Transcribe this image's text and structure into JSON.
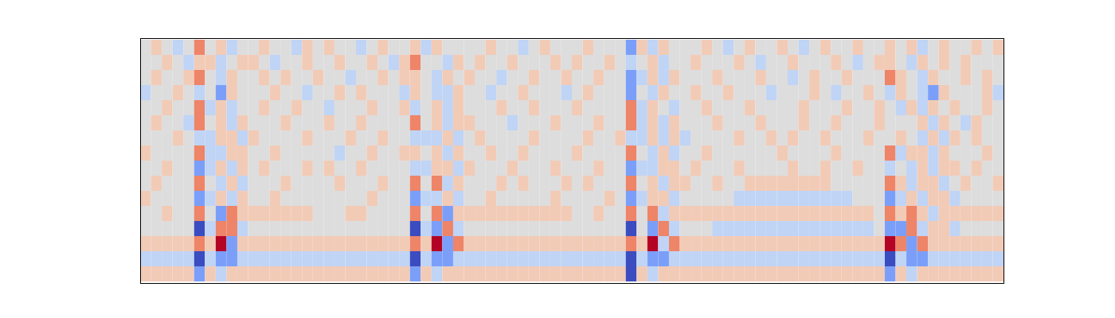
{
  "chart_data": {
    "type": "heatmap",
    "tick_labels": false,
    "clim": [
      -3,
      3
    ],
    "cells": [
      [
        0,
        1,
        0,
        -1,
        0,
        2,
        0,
        1,
        -1,
        0,
        0,
        1,
        0,
        0,
        -1,
        1,
        0,
        1,
        0,
        0,
        -1,
        0,
        1,
        0,
        0,
        1,
        -1,
        1,
        0,
        0,
        0,
        0,
        1,
        0,
        0,
        -1,
        0,
        1,
        0,
        0,
        0,
        1,
        0,
        0,
        0,
        -2,
        1,
        -1,
        1,
        0,
        0,
        0,
        1,
        0,
        -1,
        0,
        1,
        0,
        0,
        1,
        0,
        -1,
        0,
        1,
        0,
        0,
        1,
        0,
        0,
        1,
        0,
        1,
        -1,
        0,
        1,
        0,
        0,
        1,
        0,
        1
      ],
      [
        0,
        0,
        1,
        0,
        -1,
        1,
        1,
        -1,
        0,
        1,
        1,
        0,
        -1,
        0,
        0,
        1,
        0,
        0,
        1,
        0,
        0,
        1,
        0,
        -1,
        1,
        2,
        0,
        0,
        -1,
        1,
        0,
        1,
        0,
        0,
        1,
        0,
        0,
        0,
        1,
        0,
        1,
        0,
        0,
        1,
        0,
        -1,
        0,
        1,
        -1,
        0,
        0,
        1,
        0,
        0,
        0,
        1,
        0,
        -1,
        0,
        0,
        1,
        0,
        0,
        0,
        1,
        0,
        -1,
        0,
        1,
        1,
        0,
        -1,
        1,
        0,
        1,
        0,
        1,
        0,
        0,
        0
      ],
      [
        0,
        1,
        0,
        0,
        1,
        2,
        0,
        -1,
        1,
        0,
        0,
        1,
        0,
        1,
        0,
        0,
        1,
        0,
        0,
        -1,
        0,
        0,
        1,
        0,
        1,
        1,
        0,
        -1,
        1,
        0,
        1,
        0,
        0,
        -1,
        0,
        0,
        1,
        0,
        0,
        1,
        0,
        0,
        1,
        0,
        0,
        -2,
        -1,
        1,
        -1,
        1,
        0,
        0,
        0,
        1,
        0,
        0,
        0,
        1,
        0,
        0,
        -1,
        0,
        1,
        0,
        0,
        1,
        0,
        0,
        0,
        2,
        1,
        0,
        -1,
        1,
        0,
        0,
        1,
        0,
        1,
        0
      ],
      [
        -1,
        0,
        0,
        1,
        0,
        -1,
        0,
        -2,
        1,
        0,
        0,
        0,
        1,
        0,
        0,
        -1,
        0,
        0,
        1,
        0,
        1,
        0,
        0,
        0,
        -1,
        1,
        0,
        -1,
        -1,
        1,
        0,
        0,
        -1,
        0,
        0,
        1,
        0,
        0,
        0,
        -1,
        0,
        1,
        0,
        0,
        0,
        -2,
        0,
        -1,
        1,
        0,
        0,
        1,
        0,
        0,
        1,
        0,
        0,
        0,
        -1,
        0,
        0,
        0,
        1,
        0,
        -1,
        0,
        0,
        1,
        0,
        -1,
        1,
        0,
        -1,
        -2,
        1,
        0,
        0,
        0,
        1,
        -1
      ],
      [
        0,
        0,
        1,
        0,
        0,
        2,
        -1,
        1,
        -1,
        0,
        0,
        1,
        0,
        0,
        1,
        0,
        0,
        -1,
        0,
        0,
        0,
        1,
        0,
        0,
        1,
        -1,
        0,
        1,
        -1,
        1,
        0,
        0,
        0,
        1,
        0,
        0,
        1,
        0,
        0,
        0,
        1,
        0,
        0,
        0,
        0,
        2,
        -1,
        1,
        0,
        -1,
        0,
        0,
        1,
        0,
        0,
        0,
        1,
        0,
        0,
        0,
        0,
        1,
        0,
        0,
        0,
        1,
        0,
        0,
        1,
        0,
        -1,
        1,
        -1,
        1,
        0,
        1,
        0,
        0,
        1,
        0
      ],
      [
        0,
        1,
        0,
        0,
        -1,
        2,
        0,
        1,
        -1,
        1,
        0,
        0,
        0,
        1,
        0,
        0,
        0,
        1,
        0,
        0,
        1,
        0,
        0,
        0,
        0,
        2,
        0,
        1,
        -1,
        1,
        1,
        0,
        0,
        0,
        -1,
        0,
        0,
        0,
        1,
        0,
        0,
        0,
        1,
        0,
        0,
        2,
        -1,
        1,
        -1,
        1,
        0,
        0,
        0,
        1,
        0,
        0,
        0,
        1,
        0,
        0,
        0,
        1,
        0,
        0,
        1,
        0,
        0,
        0,
        1,
        0,
        0,
        0,
        1,
        -1,
        1,
        0,
        -1,
        1,
        0,
        0
      ],
      [
        0,
        0,
        0,
        1,
        0,
        -1,
        -1,
        1,
        1,
        -1,
        1,
        0,
        0,
        0,
        0,
        1,
        0,
        0,
        0,
        1,
        0,
        0,
        1,
        0,
        0,
        -1,
        -1,
        -1,
        1,
        -1,
        0,
        1,
        0,
        0,
        0,
        0,
        1,
        0,
        0,
        0,
        0,
        1,
        0,
        0,
        1,
        -1,
        -1,
        1,
        -1,
        1,
        -1,
        0,
        0,
        0,
        0,
        1,
        0,
        0,
        1,
        0,
        1,
        0,
        0,
        1,
        0,
        0,
        0,
        1,
        0,
        0,
        1,
        0,
        -1,
        1,
        -1,
        1,
        0,
        1,
        0,
        0
      ],
      [
        1,
        0,
        0,
        0,
        0,
        2,
        -1,
        -1,
        1,
        1,
        0,
        0,
        1,
        0,
        0,
        0,
        0,
        0,
        -1,
        0,
        0,
        1,
        0,
        0,
        1,
        1,
        0,
        1,
        -1,
        1,
        0,
        0,
        1,
        0,
        0,
        1,
        0,
        0,
        0,
        0,
        1,
        0,
        0,
        0,
        0,
        2,
        0,
        -1,
        1,
        -1,
        0,
        0,
        1,
        0,
        0,
        0,
        0,
        0,
        0,
        1,
        0,
        0,
        0,
        0,
        1,
        0,
        0,
        0,
        0,
        2,
        -1,
        1,
        1,
        -1,
        1,
        0,
        0,
        0,
        1,
        0
      ],
      [
        0,
        0,
        1,
        0,
        0,
        -2,
        -1,
        1,
        -1,
        1,
        0,
        1,
        0,
        0,
        0,
        1,
        0,
        1,
        0,
        0,
        1,
        0,
        0,
        0,
        0,
        -1,
        -1,
        1,
        1,
        -1,
        1,
        0,
        0,
        0,
        1,
        0,
        0,
        0,
        1,
        0,
        0,
        0,
        1,
        0,
        0,
        -2,
        -1,
        -1,
        1,
        1,
        0,
        1,
        0,
        0,
        0,
        1,
        0,
        0,
        0,
        0,
        1,
        0,
        0,
        1,
        0,
        0,
        1,
        0,
        0,
        -1,
        0,
        -1,
        1,
        -1,
        1,
        1,
        0,
        1,
        0,
        0
      ],
      [
        0,
        1,
        0,
        0,
        0,
        2,
        0,
        -1,
        1,
        -1,
        0,
        0,
        0,
        1,
        0,
        0,
        0,
        0,
        1,
        0,
        0,
        0,
        1,
        0,
        0,
        2,
        0,
        2,
        -1,
        1,
        0,
        0,
        0,
        1,
        0,
        1,
        0,
        0,
        0,
        1,
        0,
        1,
        0,
        0,
        0,
        2,
        0,
        1,
        -1,
        1,
        1,
        0,
        0,
        1,
        0,
        0,
        1,
        1,
        1,
        1,
        1,
        1,
        1,
        1,
        0,
        0,
        0,
        0,
        0,
        2,
        1,
        -1,
        1,
        1,
        -1,
        0,
        1,
        0,
        0,
        1
      ],
      [
        1,
        0,
        0,
        0,
        0,
        -2,
        -1,
        1,
        -1,
        1,
        0,
        0,
        1,
        0,
        0,
        0,
        0,
        0,
        0,
        0,
        0,
        1,
        0,
        0,
        0,
        -2,
        -1,
        -1,
        1,
        -1,
        0,
        0,
        1,
        0,
        0,
        0,
        0,
        0,
        1,
        0,
        0,
        0,
        0,
        1,
        0,
        -2,
        -1,
        1,
        1,
        -1,
        0,
        0,
        0,
        0,
        0,
        -1,
        -1,
        -1,
        -1,
        -1,
        -1,
        -1,
        -1,
        -1,
        -1,
        -1,
        0,
        0,
        0,
        -2,
        -1,
        1,
        -1,
        1,
        1,
        -1,
        0,
        0,
        0,
        0
      ],
      [
        0,
        0,
        1,
        0,
        0,
        2,
        0,
        -2,
        2,
        1,
        1,
        1,
        1,
        1,
        1,
        1,
        0,
        0,
        0,
        1,
        1,
        0,
        0,
        0,
        0,
        2,
        0,
        2,
        -2,
        1,
        1,
        1,
        1,
        1,
        1,
        1,
        1,
        1,
        1,
        1,
        0,
        0,
        1,
        0,
        0,
        2,
        0,
        2,
        -1,
        1,
        1,
        1,
        1,
        1,
        1,
        1,
        1,
        1,
        1,
        1,
        1,
        1,
        1,
        1,
        1,
        1,
        1,
        1,
        0,
        2,
        1,
        2,
        1,
        -1,
        1,
        1,
        1,
        1,
        1,
        1
      ],
      [
        0,
        0,
        0,
        0,
        0,
        -3,
        -1,
        2,
        2,
        -1,
        0,
        0,
        0,
        0,
        0,
        0,
        0,
        0,
        0,
        0,
        0,
        0,
        0,
        0,
        0,
        -3,
        -1,
        -2,
        2,
        -1,
        0,
        0,
        0,
        0,
        0,
        0,
        0,
        0,
        0,
        0,
        0,
        0,
        0,
        0,
        0,
        -3,
        0,
        -2,
        2,
        -1,
        0,
        0,
        0,
        -1,
        -1,
        -1,
        -1,
        -1,
        -1,
        -1,
        -1,
        -1,
        -1,
        -1,
        -1,
        -1,
        -1,
        -1,
        0,
        -2,
        -2,
        2,
        -1,
        1,
        1,
        -1,
        0,
        0,
        0,
        0
      ],
      [
        1,
        1,
        1,
        1,
        1,
        2,
        1,
        3,
        -2,
        1,
        1,
        1,
        1,
        1,
        1,
        1,
        1,
        1,
        1,
        1,
        1,
        1,
        1,
        1,
        1,
        2,
        1,
        3,
        -2,
        2,
        1,
        1,
        1,
        1,
        1,
        1,
        1,
        1,
        1,
        1,
        1,
        1,
        1,
        1,
        1,
        2,
        1,
        3,
        -1,
        2,
        1,
        1,
        1,
        1,
        1,
        1,
        1,
        1,
        1,
        1,
        1,
        1,
        1,
        1,
        1,
        1,
        1,
        1,
        1,
        3,
        2,
        -2,
        2,
        1,
        1,
        1,
        1,
        1,
        1,
        1
      ],
      [
        -1,
        -1,
        -1,
        -1,
        -1,
        -3,
        -1,
        -2,
        -2,
        -1,
        -1,
        -1,
        -1,
        -1,
        -1,
        -1,
        -1,
        -1,
        -1,
        -1,
        -1,
        -1,
        -1,
        -1,
        -1,
        -3,
        -1,
        -2,
        -2,
        -1,
        -1,
        -1,
        -1,
        -1,
        -1,
        -1,
        -1,
        -1,
        -1,
        -1,
        -1,
        -1,
        -1,
        -1,
        -1,
        -3,
        -1,
        -2,
        -2,
        -1,
        -1,
        -1,
        -1,
        -1,
        -1,
        -1,
        -1,
        -1,
        -1,
        -1,
        -1,
        -1,
        -1,
        -1,
        -1,
        -1,
        -1,
        -1,
        -1,
        -3,
        -1,
        -2,
        -2,
        -1,
        -1,
        -1,
        -1,
        -1,
        -1,
        -1
      ],
      [
        1,
        1,
        1,
        1,
        1,
        -2,
        1,
        -1,
        1,
        1,
        1,
        1,
        1,
        1,
        1,
        1,
        1,
        1,
        1,
        1,
        1,
        1,
        1,
        1,
        1,
        -2,
        1,
        -1,
        1,
        1,
        1,
        1,
        1,
        1,
        1,
        1,
        1,
        1,
        1,
        1,
        1,
        1,
        1,
        1,
        1,
        -3,
        1,
        -1,
        1,
        1,
        1,
        1,
        1,
        1,
        1,
        1,
        1,
        1,
        1,
        1,
        1,
        1,
        1,
        1,
        1,
        1,
        1,
        1,
        1,
        -2,
        1,
        -1,
        1,
        1,
        1,
        1,
        1,
        1,
        1,
        1
      ]
    ]
  }
}
